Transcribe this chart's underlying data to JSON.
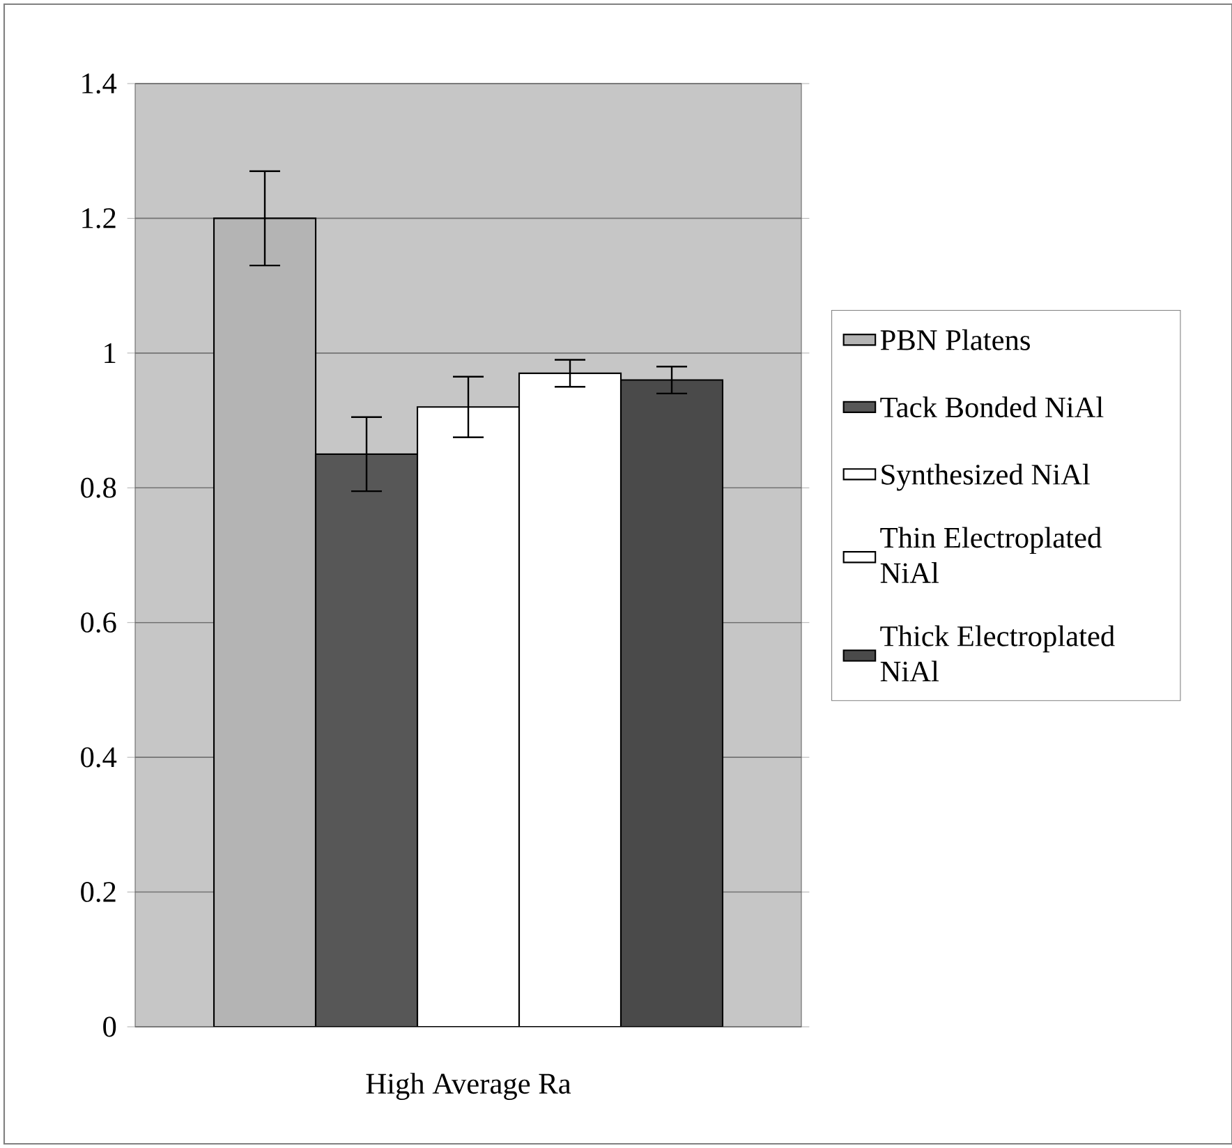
{
  "chart_data": {
    "type": "bar",
    "categories": [
      "High Average Ra"
    ],
    "series": [
      {
        "name": "PBN Platens",
        "color": "#b4b4b4",
        "values": [
          1.2
        ],
        "errors": [
          0.07
        ]
      },
      {
        "name": "Tack Bonded NiAl",
        "color": "#575757",
        "values": [
          0.85
        ],
        "errors": [
          0.055
        ]
      },
      {
        "name": "Synthesized NiAl",
        "color": "#ffffff",
        "values": [
          0.92
        ],
        "errors": [
          0.045
        ]
      },
      {
        "name": "Thin Electroplated NiAl",
        "color": "#ffffff",
        "values": [
          0.97
        ],
        "errors": [
          0.02
        ]
      },
      {
        "name": "Thick Electroplated NiAl",
        "color": "#4a4a4a",
        "values": [
          0.96
        ],
        "errors": [
          0.02
        ]
      }
    ],
    "ylim": [
      0,
      1.4
    ],
    "yticks": [
      0,
      0.2,
      0.4,
      0.6,
      0.8,
      1,
      1.2,
      1.4
    ],
    "grid": "y",
    "legend": "right"
  }
}
